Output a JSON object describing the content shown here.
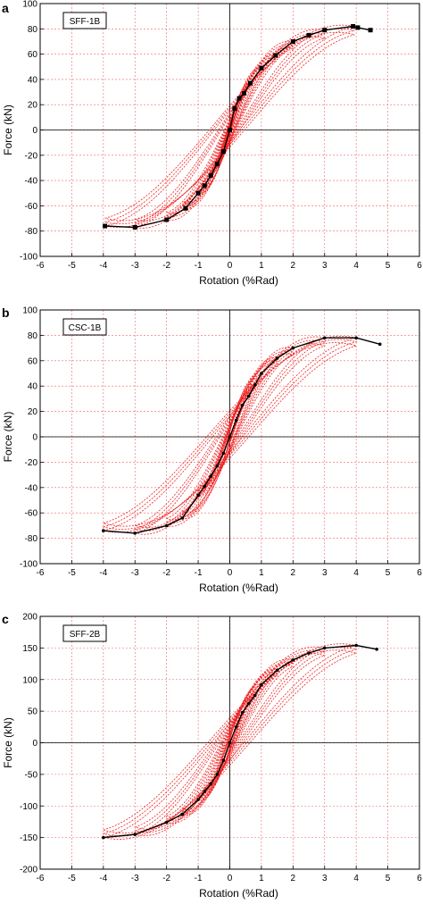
{
  "chart_data": [
    {
      "type": "line",
      "panel_letter": "a",
      "specimen_label": "SFF-1B",
      "xlabel": "Rotation (%Rad)",
      "ylabel": "Force (kN)",
      "xlim": [
        -6,
        6
      ],
      "ylim": [
        -100,
        100
      ],
      "xticks": [
        -6,
        -5,
        -4,
        -3,
        -2,
        -1,
        0,
        1,
        2,
        3,
        4,
        5,
        6
      ],
      "yticks": [
        -100,
        -80,
        -60,
        -40,
        -20,
        0,
        20,
        40,
        60,
        80,
        100
      ],
      "grid": true,
      "series": [
        {
          "role": "envelope",
          "color": "#000000",
          "marker": "square",
          "x": [
            -3.95,
            -3.0,
            -2.0,
            -1.4,
            -1.0,
            -0.8,
            -0.6,
            -0.4,
            -0.2,
            0,
            0.15,
            0.3,
            0.45,
            0.65,
            1.0,
            1.45,
            2.0,
            2.5,
            3.0,
            3.9,
            4.05,
            4.45
          ],
          "y": [
            -76,
            -77,
            -71,
            -62,
            -50,
            -44,
            -36,
            -27,
            -17,
            0,
            17,
            25,
            29,
            37,
            49,
            59,
            70,
            75,
            79,
            82,
            81,
            79
          ]
        },
        {
          "role": "hysteresis",
          "color": "#ee2222",
          "loops": [
            {
              "amp": 0.25,
              "F": 16,
              "Fn": -14,
              "width": 4
            },
            {
              "amp": 0.45,
              "F": 28,
              "Fn": -26,
              "width": 6
            },
            {
              "amp": 0.65,
              "F": 37,
              "Fn": -35,
              "width": 8
            },
            {
              "amp": 1.0,
              "F": 49,
              "Fn": -50,
              "width": 11
            },
            {
              "amp": 1.45,
              "F": 59,
              "Fn": -62,
              "width": 14
            },
            {
              "amp": 2.0,
              "F": 70,
              "Fn": -71,
              "width": 16
            },
            {
              "amp": 3.0,
              "F": 79,
              "Fn": -77,
              "width": 22
            },
            {
              "amp": 3.95,
              "F": 82,
              "Fn": -76,
              "width": 28
            }
          ]
        }
      ]
    },
    {
      "type": "line",
      "panel_letter": "b",
      "specimen_label": "CSC-1B",
      "xlabel": "Rotation (%Rad)",
      "ylabel": "Force (kN)",
      "xlim": [
        -6,
        6
      ],
      "ylim": [
        -100,
        100
      ],
      "xticks": [
        -6,
        -5,
        -4,
        -3,
        -2,
        -1,
        0,
        1,
        2,
        3,
        4,
        5,
        6
      ],
      "yticks": [
        -100,
        -80,
        -60,
        -40,
        -20,
        0,
        20,
        40,
        60,
        80,
        100
      ],
      "grid": true,
      "series": [
        {
          "role": "envelope",
          "color": "#000000",
          "marker": "dot",
          "x": [
            -4.0,
            -3.0,
            -2.0,
            -1.5,
            -1.0,
            -0.8,
            -0.6,
            -0.4,
            -0.2,
            0,
            0.2,
            0.4,
            0.6,
            0.8,
            1.0,
            1.5,
            2.0,
            3.0,
            4.0,
            4.75
          ],
          "y": [
            -74,
            -76,
            -70,
            -64,
            -46,
            -39,
            -31,
            -23,
            -13,
            0,
            13,
            25,
            32,
            41,
            50,
            62,
            70,
            78,
            78,
            73
          ]
        },
        {
          "role": "hysteresis",
          "color": "#ee2222",
          "loops": [
            {
              "amp": 0.4,
              "F": 25,
              "Fn": -23,
              "width": 6
            },
            {
              "amp": 0.8,
              "F": 41,
              "Fn": -39,
              "width": 10
            },
            {
              "amp": 1.0,
              "F": 50,
              "Fn": -46,
              "width": 12
            },
            {
              "amp": 1.5,
              "F": 62,
              "Fn": -64,
              "width": 16
            },
            {
              "amp": 2.0,
              "F": 70,
              "Fn": -70,
              "width": 20
            },
            {
              "amp": 3.0,
              "F": 78,
              "Fn": -76,
              "width": 26
            },
            {
              "amp": 4.0,
              "F": 78,
              "Fn": -74,
              "width": 32
            }
          ]
        }
      ]
    },
    {
      "type": "line",
      "panel_letter": "c",
      "specimen_label": "SFF-2B",
      "xlabel": "Rotation (%Rad)",
      "ylabel": "Force (kN)",
      "xlim": [
        -6,
        6
      ],
      "ylim": [
        -200,
        200
      ],
      "xticks": [
        -6,
        -5,
        -4,
        -3,
        -2,
        -1,
        0,
        1,
        2,
        3,
        4,
        5,
        6
      ],
      "yticks": [
        -200,
        -150,
        -100,
        -50,
        0,
        50,
        100,
        150,
        200
      ],
      "grid": true,
      "series": [
        {
          "role": "envelope",
          "color": "#000000",
          "marker": "dot",
          "x": [
            -4.0,
            -3.0,
            -2.0,
            -1.5,
            -1.0,
            -0.8,
            -0.6,
            -0.4,
            -0.2,
            0,
            0.2,
            0.4,
            0.6,
            0.8,
            1.0,
            1.5,
            2.0,
            2.5,
            3.0,
            4.0,
            4.65
          ],
          "y": [
            -150,
            -145,
            -126,
            -113,
            -90,
            -77,
            -65,
            -50,
            -28,
            0,
            25,
            48,
            62,
            75,
            92,
            115,
            131,
            142,
            150,
            154,
            148
          ]
        },
        {
          "role": "hysteresis",
          "color": "#ee2222",
          "loops": [
            {
              "amp": 0.4,
              "F": 48,
              "Fn": -50,
              "width": 10
            },
            {
              "amp": 0.8,
              "F": 75,
              "Fn": -77,
              "width": 18
            },
            {
              "amp": 1.0,
              "F": 92,
              "Fn": -90,
              "width": 24
            },
            {
              "amp": 1.5,
              "F": 115,
              "Fn": -113,
              "width": 32
            },
            {
              "amp": 2.0,
              "F": 131,
              "Fn": -126,
              "width": 40
            },
            {
              "amp": 3.0,
              "F": 150,
              "Fn": -145,
              "width": 52
            },
            {
              "amp": 4.0,
              "F": 154,
              "Fn": -150,
              "width": 64
            }
          ]
        }
      ]
    }
  ]
}
